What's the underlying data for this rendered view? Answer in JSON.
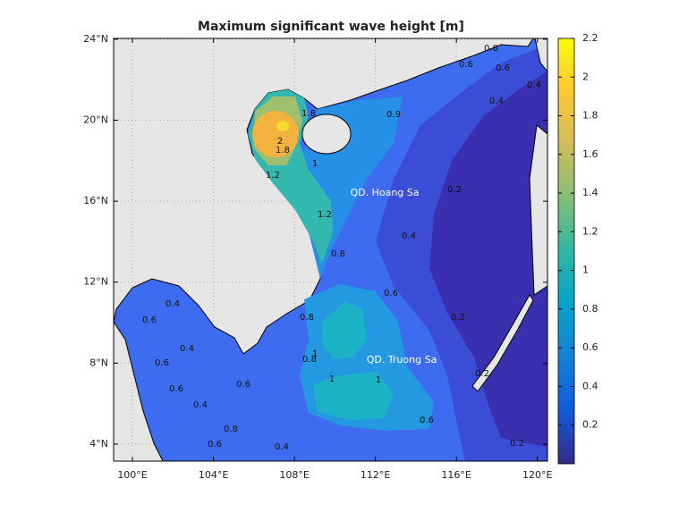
{
  "title": "Maximum significant wave height [m]",
  "map": {
    "lon_range": [
      99.07,
      120.5
    ],
    "lat_range": [
      3.16,
      24.04
    ],
    "grid": true,
    "lon_ticks": [
      {
        "value": 100,
        "label": "100°E"
      },
      {
        "value": 104,
        "label": "104°E"
      },
      {
        "value": 108,
        "label": "108°E"
      },
      {
        "value": 112,
        "label": "112°E"
      },
      {
        "value": 116,
        "label": "116°E"
      },
      {
        "value": 120,
        "label": "120°E"
      }
    ],
    "lat_ticks": [
      {
        "value": 4,
        "label": "4°N"
      },
      {
        "value": 8,
        "label": "8°N"
      },
      {
        "value": 12,
        "label": "12°N"
      },
      {
        "value": 16,
        "label": "16°N"
      },
      {
        "value": 20,
        "label": "20°N"
      },
      {
        "value": 24,
        "label": "24°N"
      }
    ]
  },
  "colorbar": {
    "range": [
      0,
      2.2
    ],
    "ticks": [
      0.2,
      0.4,
      0.6,
      0.8,
      1,
      1.2,
      1.4,
      1.6,
      1.8,
      2,
      2.2
    ]
  },
  "place_labels": [
    "QD. Hoang Sa",
    "QD. Truong Sa"
  ],
  "contour_labels": [
    0.8,
    0.6,
    0.6,
    0.4,
    0.4,
    0.9,
    1.8,
    2,
    1.8,
    1,
    1.2,
    0.2,
    1.2,
    0.4,
    0.8,
    0.6,
    0.2,
    0.6,
    0.4,
    0.8,
    0.4,
    0.6,
    0.8,
    1,
    1,
    1,
    0.6,
    0.6,
    0.4,
    0.8,
    0.6,
    0.2,
    0.2,
    0.6,
    0.4
  ]
}
